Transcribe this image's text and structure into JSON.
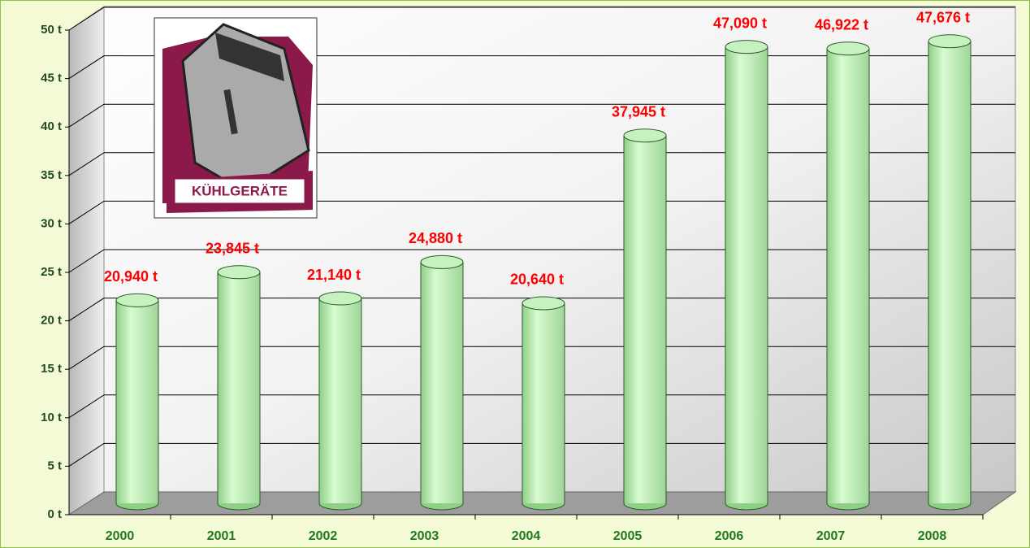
{
  "chart_data": {
    "type": "bar",
    "image_label": "KÜHLGERÄTE",
    "categories": [
      "2000",
      "2001",
      "2002",
      "2003",
      "2004",
      "2005",
      "2006",
      "2007",
      "2008"
    ],
    "values": [
      20.94,
      23.845,
      21.14,
      24.88,
      20.64,
      37.945,
      47.09,
      46.922,
      47.676
    ],
    "value_labels": [
      "20,940 t",
      "23,845 t",
      "21,140 t",
      "24,880 t",
      "20,640 t",
      "37,945 t",
      "47,090 t",
      "46,922 t",
      "47,676 t"
    ],
    "color": "#c6f2bf",
    "ylim": [
      0,
      50
    ],
    "yticks": [
      {
        "value": 0,
        "label": "0 t"
      },
      {
        "value": 5,
        "label": "5 t"
      },
      {
        "value": 10,
        "label": "10 t"
      },
      {
        "value": 15,
        "label": "15 t"
      },
      {
        "value": 20,
        "label": "20 t"
      },
      {
        "value": 25,
        "label": "25 t"
      },
      {
        "value": 30,
        "label": "30 t"
      },
      {
        "value": 35,
        "label": "35 t"
      },
      {
        "value": 40,
        "label": "40 t"
      },
      {
        "value": 45,
        "label": "45 t"
      },
      {
        "value": 50,
        "label": "50 t"
      }
    ],
    "grid": true
  }
}
